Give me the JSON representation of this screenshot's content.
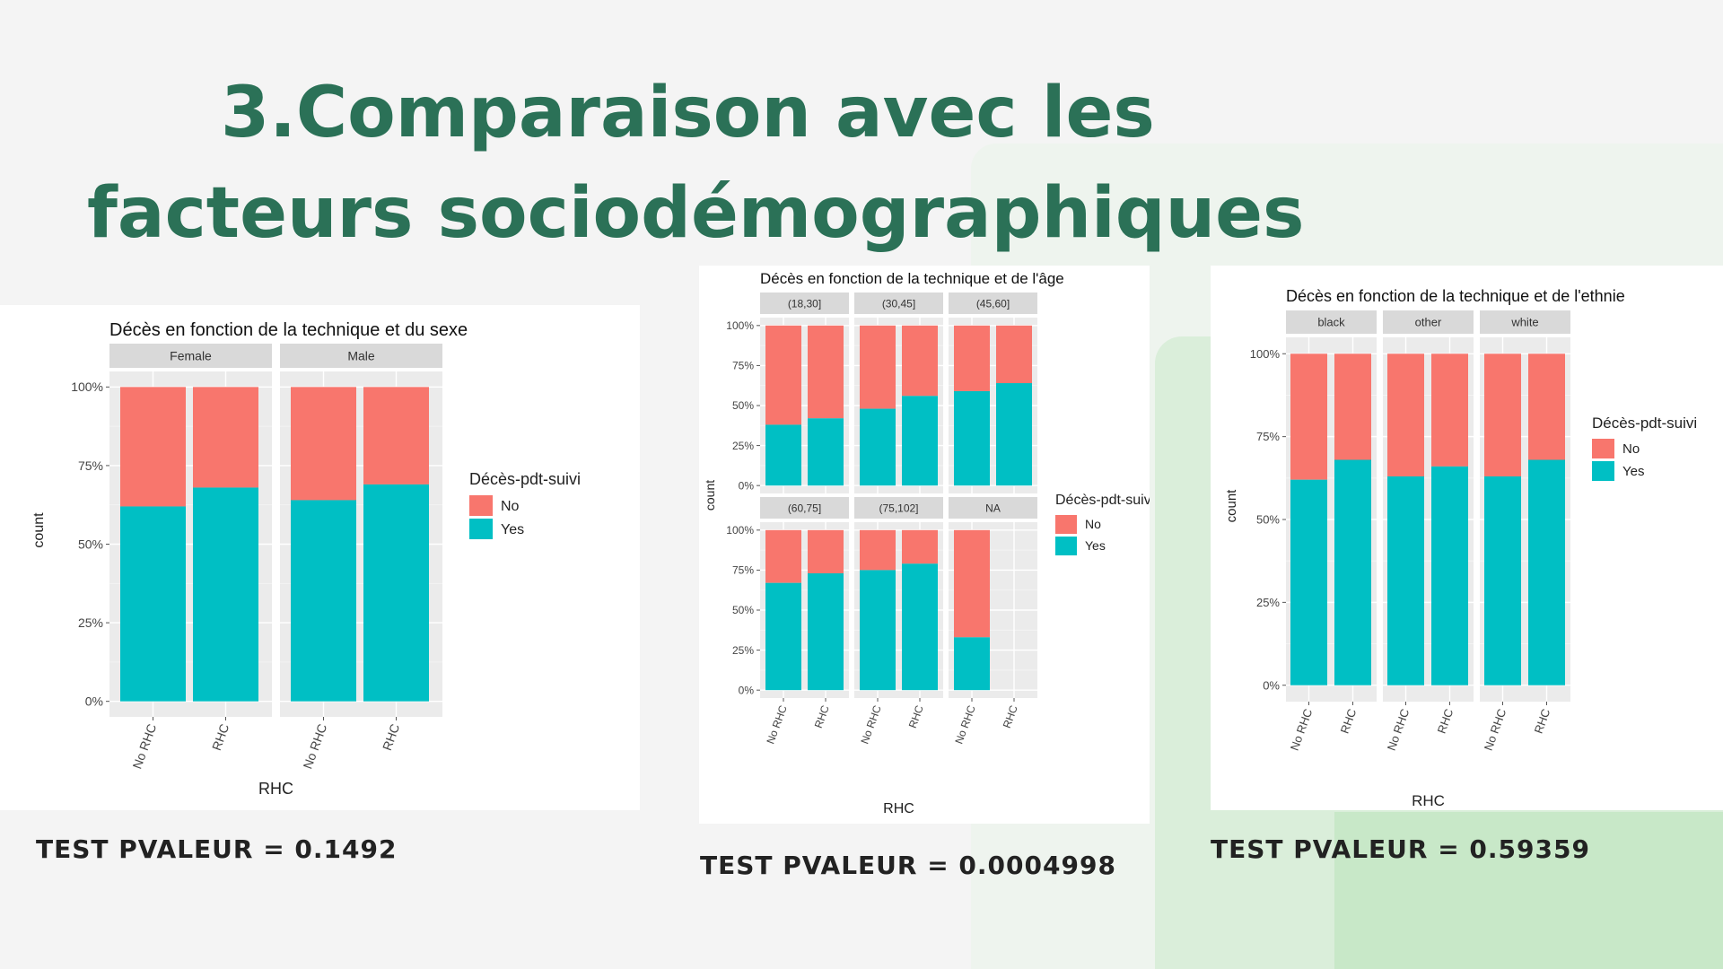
{
  "slide": {
    "title_line1": "3.Comparaison avec les",
    "title_line2": "facteurs sociodémographiques"
  },
  "colors": {
    "no": "#f8766d",
    "yes": "#00bfc4",
    "panel_bg": "#ebebeb",
    "strip_bg": "#d9d9d9",
    "title": "#2b7157"
  },
  "pvalues": [
    "TEST PVALEUR = 0.1492",
    "TEST PVALEUR = 0.0004998",
    "TEST PVALEUR = 0.59359"
  ],
  "chart_data": [
    {
      "type": "bar",
      "stacked": "fill",
      "title": "Décès en fonction de la technique et du sexe",
      "xlabel": "RHC",
      "ylabel": "count",
      "ylim": [
        0,
        1
      ],
      "yticks": [
        "0%",
        "25%",
        "50%",
        "75%",
        "100%"
      ],
      "categories": [
        "No RHC",
        "RHC"
      ],
      "legend": {
        "title": "Décès-pdt-suivi",
        "entries": [
          "No",
          "Yes"
        ],
        "position": "right"
      },
      "panels": [
        {
          "strip": "Female",
          "series": [
            {
              "name": "Yes",
              "values": [
                0.62,
                0.68
              ]
            },
            {
              "name": "No",
              "values": [
                0.38,
                0.32
              ]
            }
          ]
        },
        {
          "strip": "Male",
          "series": [
            {
              "name": "Yes",
              "values": [
                0.64,
                0.69
              ]
            },
            {
              "name": "No",
              "values": [
                0.36,
                0.31
              ]
            }
          ]
        }
      ]
    },
    {
      "type": "bar",
      "stacked": "fill",
      "title": "Décès en fonction de la technique et de l'âge",
      "xlabel": "RHC",
      "ylabel": "count",
      "ylim": [
        0,
        1
      ],
      "yticks": [
        "0%",
        "25%",
        "50%",
        "75%",
        "100%"
      ],
      "categories": [
        "No RHC",
        "RHC"
      ],
      "legend": {
        "title": "Décès-pdt-suivi",
        "entries": [
          "No",
          "Yes"
        ],
        "position": "right"
      },
      "panels": [
        {
          "strip": "(18,30]",
          "series": [
            {
              "name": "Yes",
              "values": [
                0.38,
                0.42
              ]
            },
            {
              "name": "No",
              "values": [
                0.62,
                0.58
              ]
            }
          ]
        },
        {
          "strip": "(30,45]",
          "series": [
            {
              "name": "Yes",
              "values": [
                0.48,
                0.56
              ]
            },
            {
              "name": "No",
              "values": [
                0.52,
                0.44
              ]
            }
          ]
        },
        {
          "strip": "(45,60]",
          "series": [
            {
              "name": "Yes",
              "values": [
                0.59,
                0.64
              ]
            },
            {
              "name": "No",
              "values": [
                0.41,
                0.36
              ]
            }
          ]
        },
        {
          "strip": "(60,75]",
          "series": [
            {
              "name": "Yes",
              "values": [
                0.67,
                0.73
              ]
            },
            {
              "name": "No",
              "values": [
                0.33,
                0.27
              ]
            }
          ]
        },
        {
          "strip": "(75,102]",
          "series": [
            {
              "name": "Yes",
              "values": [
                0.75,
                0.79
              ]
            },
            {
              "name": "No",
              "values": [
                0.25,
                0.21
              ]
            }
          ]
        },
        {
          "strip": "NA",
          "series": [
            {
              "name": "Yes",
              "values": [
                0.33,
                null
              ]
            },
            {
              "name": "No",
              "values": [
                0.67,
                null
              ]
            }
          ]
        }
      ]
    },
    {
      "type": "bar",
      "stacked": "fill",
      "title": "Décès en fonction de la technique et de l'ethnie",
      "xlabel": "RHC",
      "ylabel": "count",
      "ylim": [
        0,
        1
      ],
      "yticks": [
        "0%",
        "25%",
        "50%",
        "75%",
        "100%"
      ],
      "categories": [
        "No RHC",
        "RHC"
      ],
      "legend": {
        "title": "Décès-pdt-suivi",
        "entries": [
          "No",
          "Yes"
        ],
        "position": "right"
      },
      "panels": [
        {
          "strip": "black",
          "series": [
            {
              "name": "Yes",
              "values": [
                0.62,
                0.68
              ]
            },
            {
              "name": "No",
              "values": [
                0.38,
                0.32
              ]
            }
          ]
        },
        {
          "strip": "other",
          "series": [
            {
              "name": "Yes",
              "values": [
                0.63,
                0.66
              ]
            },
            {
              "name": "No",
              "values": [
                0.37,
                0.34
              ]
            }
          ]
        },
        {
          "strip": "white",
          "series": [
            {
              "name": "Yes",
              "values": [
                0.63,
                0.68
              ]
            },
            {
              "name": "No",
              "values": [
                0.37,
                0.32
              ]
            }
          ]
        }
      ]
    }
  ]
}
